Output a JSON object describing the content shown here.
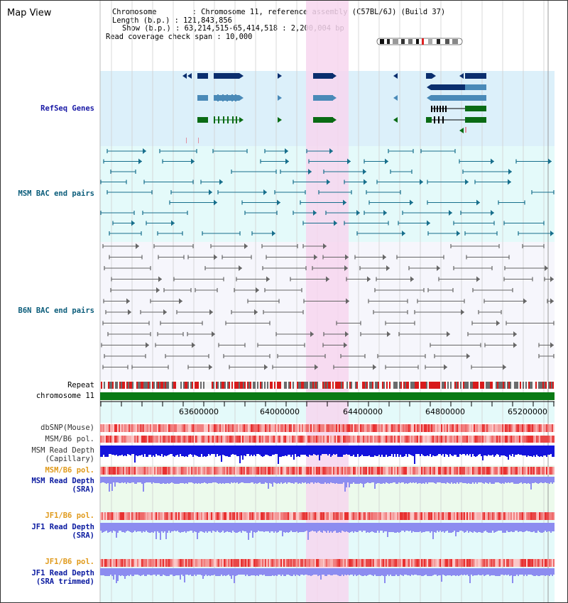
{
  "panel_title": "Map View",
  "header": {
    "chromosome": "Chromosome        : Chromosome 11, reference assembly (C57BL/6J) (Build 37)",
    "length": "Length (b.p.) : 121,843,856",
    "show": "Show (b.p.) : 63,214,515-65,414,518 : 2,200,004 bp",
    "span": "Read coverage check span : 10,000"
  },
  "tracks": {
    "refseq": "RefSeq Genes",
    "msm_bac": "MSM BAC end pairs",
    "b6n_bac": "B6N BAC end pairs",
    "repeat": "Repeat",
    "chromosome": "chromosome 11",
    "dbsnp": "dbSNP(Mouse)",
    "msm_b6_pol": "MSM/B6 pol.",
    "msm_depth_cap_1": "MSM Read Depth",
    "msm_depth_cap_2": "(Capillary)",
    "msm_b6_pol_sra": "MSM/B6 pol.",
    "msm_depth_sra_1": "MSM Read Depth",
    "msm_depth_sra_2": "(SRA)",
    "jf1_pol_1": "JF1/B6 pol.",
    "jf1_depth_1": "JF1 Read Depth",
    "jf1_depth_1b": "(SRA)",
    "jf1_pol_2": "JF1/B6 pol.",
    "jf1_depth_2": "JF1 Read Depth",
    "jf1_depth_2b": "(SRA trimmed)"
  },
  "axis_ticks": [
    "63600000",
    "64000000",
    "64400000",
    "64800000",
    "65200000"
  ],
  "colors": {
    "refseq_bg": "#dcf0fa",
    "highlight": "#f7d6ef",
    "gene_navy": "#0a2e6e",
    "gene_steel": "#4a8ab8",
    "gene_green": "#0a6b14",
    "bac_teal": "#176f8c",
    "bac_gray": "#666666",
    "depth_blue": "#1414dc",
    "depth_light": "#8c8cf0",
    "pol_red": "#e83030"
  }
}
